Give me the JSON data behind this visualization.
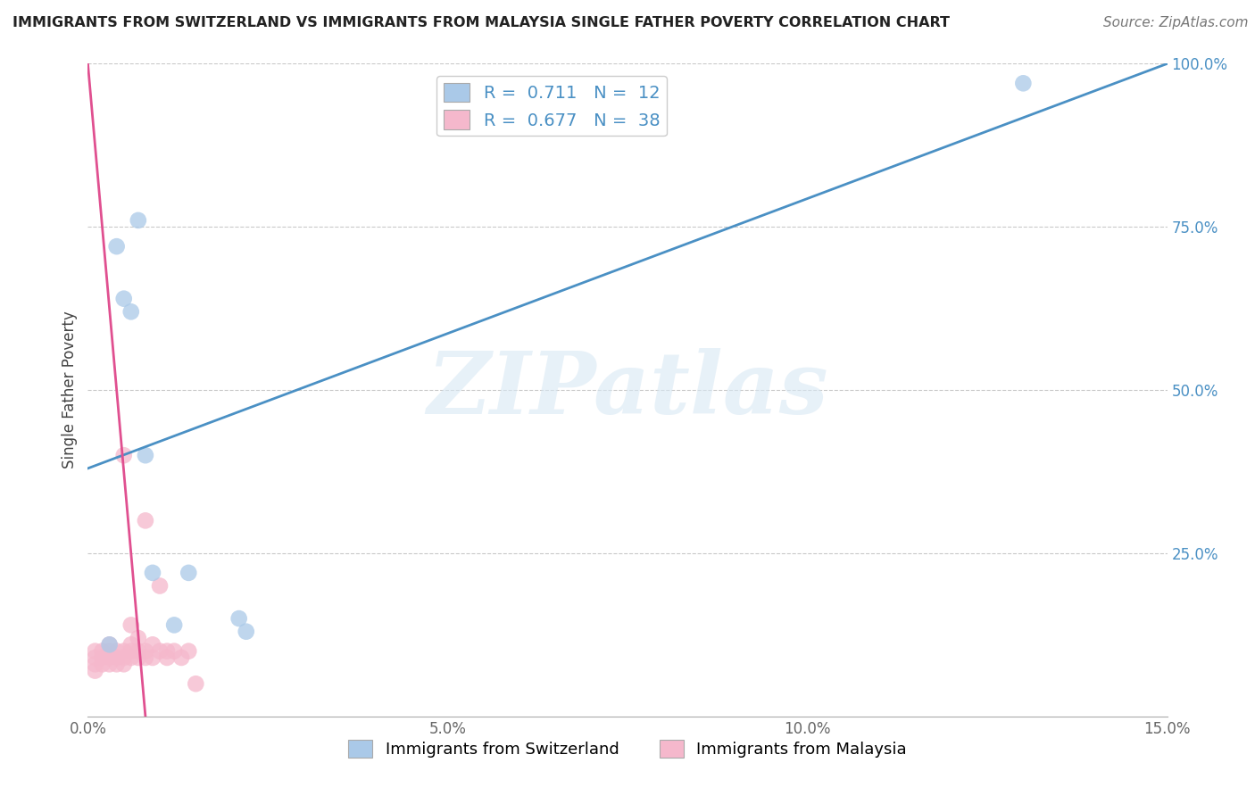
{
  "title": "IMMIGRANTS FROM SWITZERLAND VS IMMIGRANTS FROM MALAYSIA SINGLE FATHER POVERTY CORRELATION CHART",
  "source": "Source: ZipAtlas.com",
  "ylabel": "Single Father Poverty",
  "xlim": [
    0.0,
    0.15
  ],
  "ylim": [
    0.0,
    1.0
  ],
  "xticks": [
    0.0,
    0.05,
    0.1,
    0.15
  ],
  "xticklabels": [
    "0.0%",
    "5.0%",
    "10.0%",
    "15.0%"
  ],
  "yticks": [
    0.25,
    0.5,
    0.75,
    1.0
  ],
  "yticklabels": [
    "25.0%",
    "50.0%",
    "75.0%",
    "100.0%"
  ],
  "r_swiss": 0.711,
  "n_swiss": 12,
  "r_malaysia": 0.677,
  "n_malaysia": 38,
  "blue_color": "#aac9e8",
  "pink_color": "#f5b8cc",
  "blue_line_color": "#4a90c4",
  "pink_line_color": "#e05090",
  "watermark_text": "ZIPatlas",
  "swiss_x": [
    0.003,
    0.004,
    0.005,
    0.006,
    0.007,
    0.008,
    0.009,
    0.012,
    0.014,
    0.021,
    0.022,
    0.13
  ],
  "swiss_y": [
    0.11,
    0.72,
    0.64,
    0.62,
    0.76,
    0.4,
    0.22,
    0.14,
    0.22,
    0.15,
    0.13,
    0.97
  ],
  "malaysia_x": [
    0.001,
    0.001,
    0.001,
    0.001,
    0.002,
    0.002,
    0.002,
    0.003,
    0.003,
    0.003,
    0.003,
    0.004,
    0.004,
    0.004,
    0.005,
    0.005,
    0.005,
    0.005,
    0.006,
    0.006,
    0.006,
    0.006,
    0.007,
    0.007,
    0.007,
    0.008,
    0.008,
    0.008,
    0.009,
    0.009,
    0.01,
    0.01,
    0.011,
    0.011,
    0.012,
    0.013,
    0.014,
    0.015
  ],
  "malaysia_y": [
    0.07,
    0.08,
    0.09,
    0.1,
    0.08,
    0.09,
    0.1,
    0.08,
    0.09,
    0.1,
    0.11,
    0.08,
    0.09,
    0.1,
    0.08,
    0.09,
    0.1,
    0.4,
    0.09,
    0.1,
    0.11,
    0.14,
    0.09,
    0.1,
    0.12,
    0.09,
    0.1,
    0.3,
    0.09,
    0.11,
    0.1,
    0.2,
    0.09,
    0.1,
    0.1,
    0.09,
    0.1,
    0.05
  ],
  "blue_line_x0": 0.0,
  "blue_line_y0": 0.38,
  "blue_line_x1": 0.15,
  "blue_line_y1": 1.0,
  "pink_line_x0": 0.008,
  "pink_line_y0": 0.0,
  "pink_line_x1": 0.0,
  "pink_line_y1": 1.0
}
